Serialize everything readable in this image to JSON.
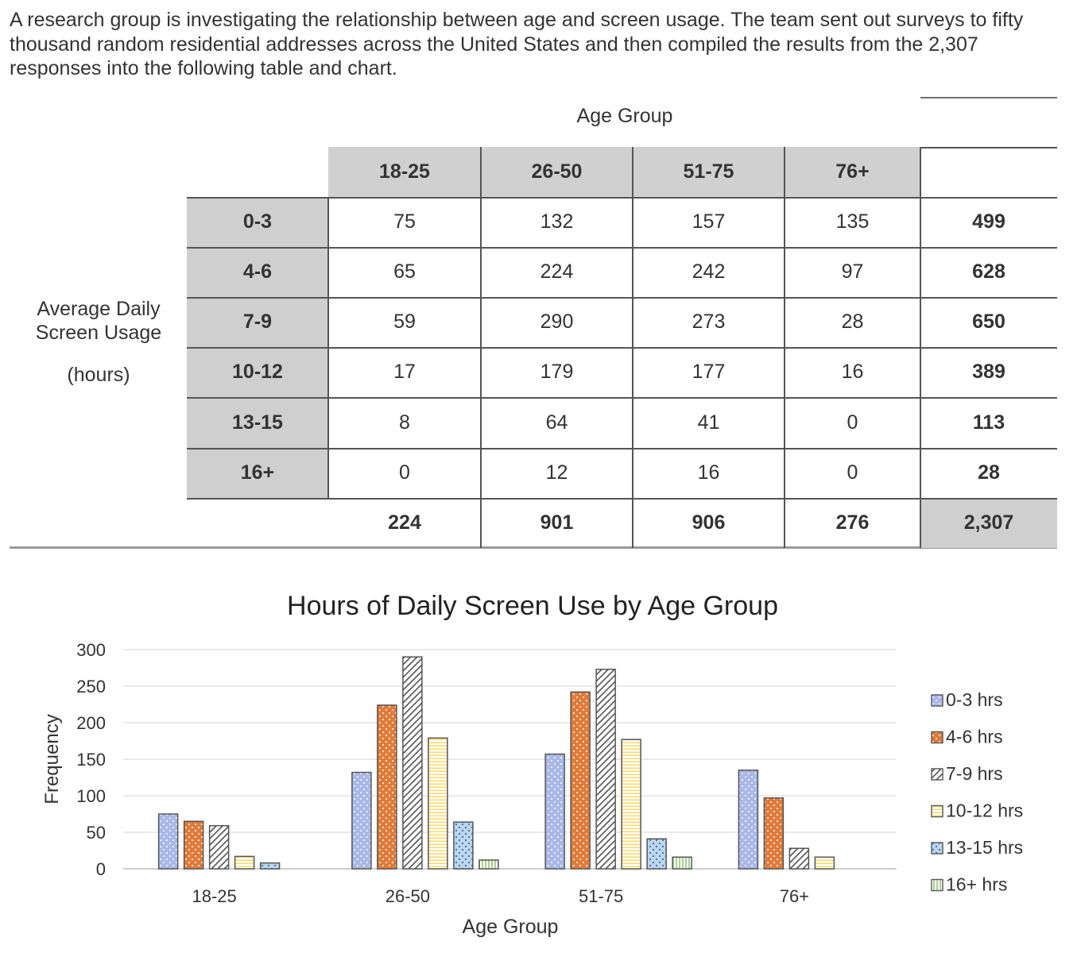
{
  "intro": "A research group is investigating the relationship between age and screen usage. The team sent out surveys to fifty thousand random residential addresses across the United States and then compiled the results from the 2,307 responses into the following table and chart.",
  "table": {
    "column_group_label": "Age Group",
    "row_group_label": "Average Daily Screen Usage",
    "row_group_unit": "(hours)",
    "columns": [
      "18-25",
      "26-50",
      "51-75",
      "76+"
    ],
    "rows": [
      {
        "label": "0-3",
        "values": [
          "75",
          "132",
          "157",
          "135"
        ],
        "total": "499"
      },
      {
        "label": "4-6",
        "values": [
          "65",
          "224",
          "242",
          "97"
        ],
        "total": "628"
      },
      {
        "label": "7-9",
        "values": [
          "59",
          "290",
          "273",
          "28"
        ],
        "total": "650"
      },
      {
        "label": "10-12",
        "values": [
          "17",
          "179",
          "177",
          "16"
        ],
        "total": "389"
      },
      {
        "label": "13-15",
        "values": [
          "8",
          "64",
          "41",
          "0"
        ],
        "total": "113"
      },
      {
        "label": "16+",
        "values": [
          "0",
          "12",
          "16",
          "0"
        ],
        "total": "28"
      }
    ],
    "column_totals": [
      "224",
      "901",
      "906",
      "276"
    ],
    "grand_total": "2,307"
  },
  "chart_data": {
    "type": "bar",
    "title": "Hours of Daily Screen Use by Age Group",
    "xlabel": "Age Group",
    "ylabel": "Frequency",
    "categories": [
      "18-25",
      "26-50",
      "51-75",
      "76+"
    ],
    "ylim": [
      0,
      300
    ],
    "yticks": [
      0,
      50,
      100,
      150,
      200,
      250,
      300
    ],
    "grid": true,
    "legend_position": "right",
    "series": [
      {
        "name": "0-3 hrs",
        "values": [
          75,
          132,
          157,
          135
        ],
        "color": "#a9b8e8",
        "pattern": "dots"
      },
      {
        "name": "4-6 hrs",
        "values": [
          65,
          224,
          242,
          97
        ],
        "color": "#e07b39",
        "pattern": "dots"
      },
      {
        "name": "7-9 hrs",
        "values": [
          59,
          290,
          273,
          28
        ],
        "color": "#ffffff",
        "pattern": "diagonal"
      },
      {
        "name": "10-12 hrs",
        "values": [
          17,
          179,
          177,
          16
        ],
        "color": "#ffd966",
        "pattern": "horizontal"
      },
      {
        "name": "13-15 hrs",
        "values": [
          8,
          64,
          41,
          0
        ],
        "color": "#bdd7ee",
        "pattern": "dense-dots"
      },
      {
        "name": "16+ hrs",
        "values": [
          0,
          12,
          16,
          0
        ],
        "color": "#a9d18e",
        "pattern": "vertical"
      }
    ]
  }
}
